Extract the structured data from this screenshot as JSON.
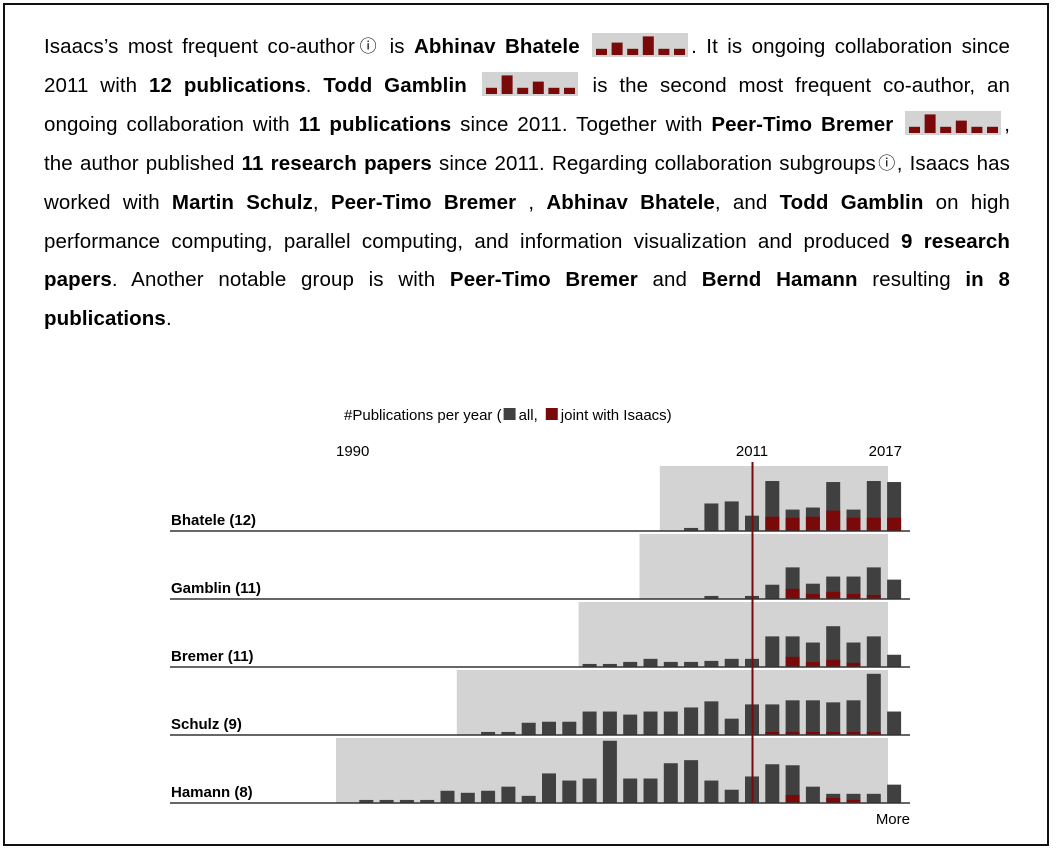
{
  "colors": {
    "all": "#404040",
    "joint": "#7a0a0a",
    "window": "#d3d3d3",
    "marker": "#7a0a0a",
    "sparkbg": "#d3d3d3"
  },
  "paragraph": {
    "s1_a": "Isaacs’s most frequent co-author",
    "info_icon": "ⓘ",
    "s1_b": " is ",
    "a1": "Abhinav Bhatele",
    "s1_c": ". It is ongoing collaboration since 2011 with ",
    "p12": "12 publications",
    "s1_d": ". ",
    "a2": "Todd Gamblin",
    "s2_a": " is the second most frequent co-author, an ongoing collaboration with ",
    "p11": "11 publications",
    "s2_b": " since 2011. Together with ",
    "a3": "Peer-Timo Bremer",
    "s3_a": ", the author published ",
    "r11": "11 research papers",
    "s3_b": " since 2011. Regarding collaboration subgroups",
    "s3_c": ", Isaacs has worked with ",
    "g1": "Martin Schulz",
    "comma1": ", ",
    "g2": "Peer-Timo Bremer",
    "comma2": " , ",
    "g3": "Abhinav Bhatele",
    "and1": ", and ",
    "g4": "Todd Gamblin",
    "s4_a": " on high performance computing, parallel computing, and information visualization and produced ",
    "r9": "9 research papers",
    "s4_b": ". Another notable group is with ",
    "g5": "Peer-Timo Bremer",
    "and2": " and ",
    "g6": "Bernd Hamann",
    "s4_c": " resulting ",
    "in8": "in 8 publications",
    "end": "."
  },
  "sparklines": [
    [
      1,
      2,
      1,
      3,
      1,
      1
    ],
    [
      1,
      3,
      1,
      2,
      1,
      1
    ],
    [
      1,
      3,
      1,
      2,
      1,
      1
    ]
  ],
  "chart_data": {
    "type": "bar",
    "title_prefix": "#Publications per year (",
    "legend": [
      {
        "label": "all,",
        "color": "#404040"
      },
      {
        "label": "joint with Isaacs)",
        "color": "#7a0a0a"
      }
    ],
    "x_ticks": [
      "1990",
      "2011",
      "2017"
    ],
    "x_range": [
      1990,
      2017
    ],
    "marker_year": 2011,
    "more_label": "More",
    "rows": [
      {
        "label": "Bhatele (12)",
        "window_start": 2006,
        "all": [
          0,
          0,
          0,
          0,
          0,
          0,
          0,
          0,
          0,
          0,
          0,
          0,
          0,
          0,
          0,
          0,
          0,
          0,
          0,
          0,
          0,
          0.3,
          2.7,
          2.9,
          1.5,
          4.9,
          2.1,
          2.3,
          4.8,
          2.1,
          4.9,
          4.8
        ],
        "joint": [
          0,
          0,
          0,
          0,
          0,
          0,
          0,
          0,
          0,
          0,
          0,
          0,
          0,
          0,
          0,
          0,
          0,
          0,
          0,
          0,
          0,
          0,
          0,
          0,
          0,
          1.4,
          1.3,
          1.4,
          2.0,
          1.3,
          1.3,
          1.3
        ]
      },
      {
        "label": "Gamblin (11)",
        "window_start": 2005,
        "all": [
          0,
          0,
          0,
          0,
          0,
          0,
          0,
          0,
          0,
          0,
          0,
          0,
          0,
          0,
          0,
          0,
          0,
          0,
          0,
          0,
          0,
          0,
          0,
          0,
          0,
          0.3,
          0,
          0.3,
          1.4,
          3.1,
          1.5,
          2.2,
          2.2,
          3.1,
          1.9
        ],
        "joint": [
          0,
          0,
          0,
          0,
          0,
          0,
          0,
          0,
          0,
          0,
          0,
          0,
          0,
          0,
          0,
          0,
          0,
          0,
          0,
          0,
          0,
          0,
          0,
          0,
          0,
          0,
          0,
          0,
          0,
          1.0,
          0.5,
          0.7,
          0.5,
          0.4,
          0
        ]
      },
      {
        "label": "Bremer (11)",
        "window_start": 2002,
        "all": [
          0,
          0,
          0,
          0,
          0,
          0,
          0,
          0,
          0,
          0,
          0,
          0,
          0,
          0.3,
          0.3,
          0.5,
          0.8,
          0.5,
          0.5,
          0.6,
          0.8,
          0.8,
          3.0,
          3.0,
          2.4,
          4.0,
          2.4,
          3.0,
          1.2
        ],
        "joint": [
          0,
          0,
          0,
          0,
          0,
          0,
          0,
          0,
          0,
          0,
          0,
          0,
          0,
          0,
          0,
          0,
          0,
          0,
          0,
          0,
          0,
          0,
          0,
          1.0,
          0.5,
          0.7,
          0.4,
          0,
          0
        ]
      },
      {
        "label": "Schulz (9)",
        "window_start": 1996,
        "all": [
          0,
          0,
          0,
          0,
          0,
          0,
          0.3,
          0.3,
          1.2,
          1.3,
          1.3,
          2.3,
          2.3,
          2.0,
          2.3,
          2.3,
          2.7,
          3.3,
          1.6,
          3.0,
          3.0,
          3.4,
          3.4,
          3.2,
          3.4,
          6.0,
          2.3
        ],
        "joint": [
          0,
          0,
          0,
          0,
          0,
          0,
          0,
          0,
          0,
          0,
          0,
          0,
          0,
          0,
          0,
          0,
          0,
          0,
          0,
          0,
          0.3,
          0.3,
          0.3,
          0.3,
          0.3,
          0.3,
          0
        ]
      },
      {
        "label": "Hamann (8)",
        "window_start": 1990,
        "all": [
          0.3,
          0.3,
          0.3,
          0.3,
          1.2,
          1.0,
          1.2,
          1.6,
          0.7,
          2.9,
          2.2,
          2.4,
          6.1,
          2.4,
          2.4,
          3.9,
          4.2,
          2.2,
          1.3,
          2.6,
          3.8,
          3.7,
          1.6,
          0.9,
          0.9,
          0.9,
          1.8
        ],
        "joint": [
          0,
          0,
          0,
          0,
          0,
          0,
          0,
          0,
          0,
          0,
          0,
          0,
          0,
          0,
          0,
          0,
          0,
          0,
          0,
          0,
          0,
          0.8,
          0,
          0.5,
          0.3,
          0,
          0
        ]
      }
    ]
  }
}
